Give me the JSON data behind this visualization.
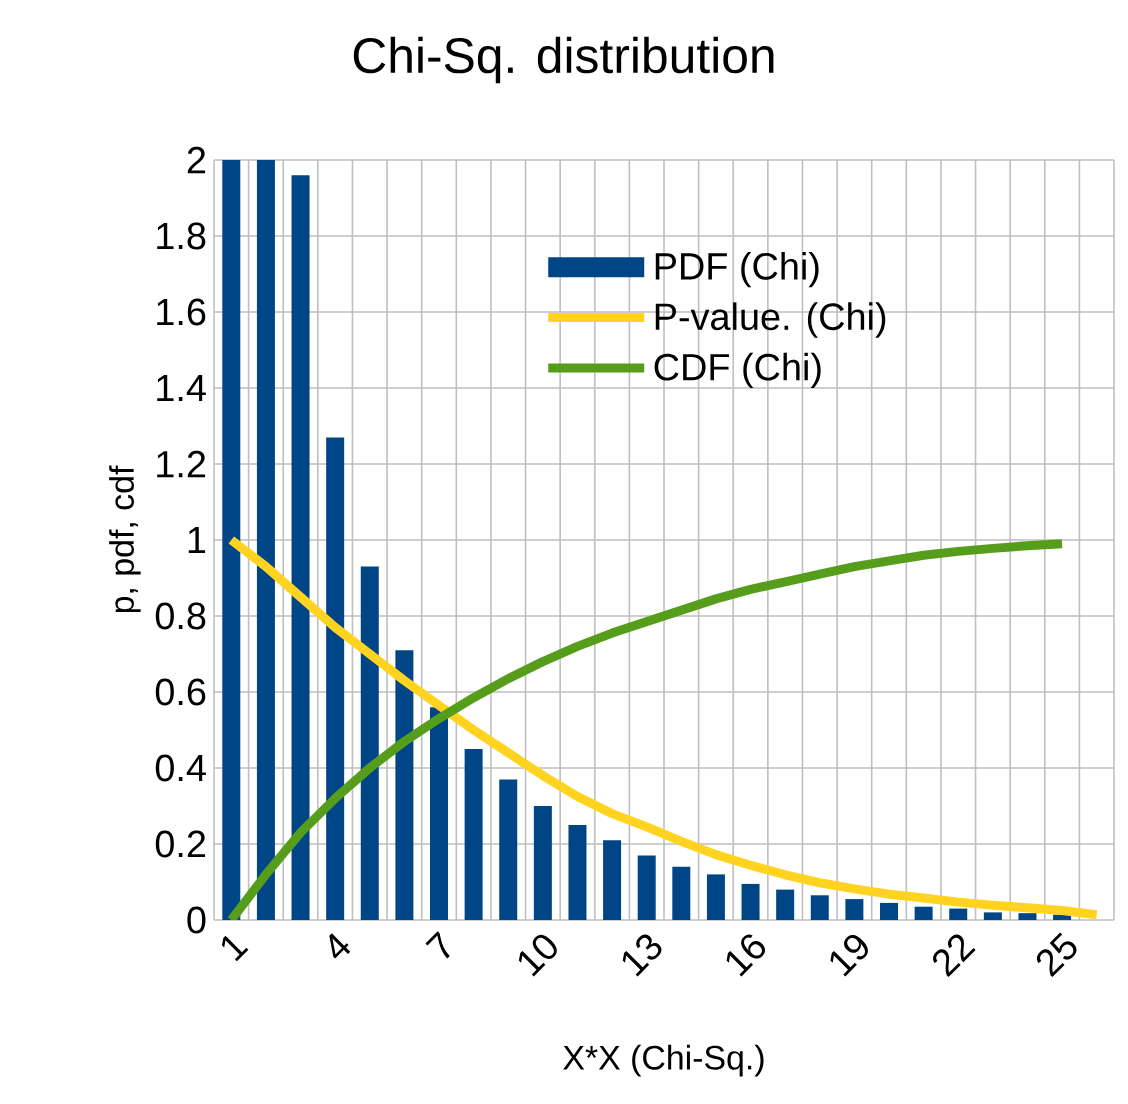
{
  "chart_data": {
    "type": "bar",
    "title": "Chi-Sq. distribution",
    "xlabel": "X*X (Chi-Sq.)",
    "ylabel": "p, pdf, cdf",
    "categories": [
      "1",
      null,
      null,
      "4",
      null,
      null,
      "7",
      null,
      null,
      "10",
      null,
      null,
      "13",
      null,
      null,
      "16",
      null,
      null,
      "19",
      null,
      null,
      "22",
      null,
      null,
      "25",
      null
    ],
    "series": [
      {
        "name": "PDF (Chi)",
        "color": "#004586",
        "values": [
          2,
          2,
          1.96,
          1.27,
          0.93,
          0.71,
          0.56,
          0.45,
          0.37,
          0.3,
          0.25,
          0.21,
          0.17,
          0.14,
          0.12,
          0.095,
          0.08,
          0.065,
          0.055,
          0.045,
          0.035,
          0.03,
          0.02,
          0.018,
          0.014,
          null
        ]
      },
      {
        "name": "P-value. (Chi)",
        "type": "line",
        "color": "#ffd320",
        "values": [
          1,
          0.93,
          0.85,
          0.77,
          0.7,
          0.63,
          0.565,
          0.5,
          0.44,
          0.38,
          0.325,
          0.28,
          0.245,
          0.207,
          0.172,
          0.144,
          0.119,
          0.098,
          0.082,
          0.068,
          0.058,
          0.047,
          0.039,
          0.032,
          0.025,
          0.014
        ]
      },
      {
        "name": "CDF (Chi)",
        "type": "line",
        "color": "#579d1c",
        "values": [
          0,
          0.12,
          0.23,
          0.32,
          0.4,
          0.47,
          0.53,
          0.585,
          0.635,
          0.68,
          0.72,
          0.755,
          0.785,
          0.815,
          0.845,
          0.87,
          0.89,
          0.91,
          0.93,
          0.945,
          0.96,
          0.97,
          0.978,
          0.985,
          0.99,
          null
        ]
      }
    ],
    "ylim": [
      0,
      2
    ],
    "yticks": [
      0,
      0.2,
      0.4,
      0.6,
      0.8,
      1,
      1.2,
      1.4,
      1.6,
      1.8,
      2
    ],
    "grid": true,
    "legend": "top right"
  }
}
